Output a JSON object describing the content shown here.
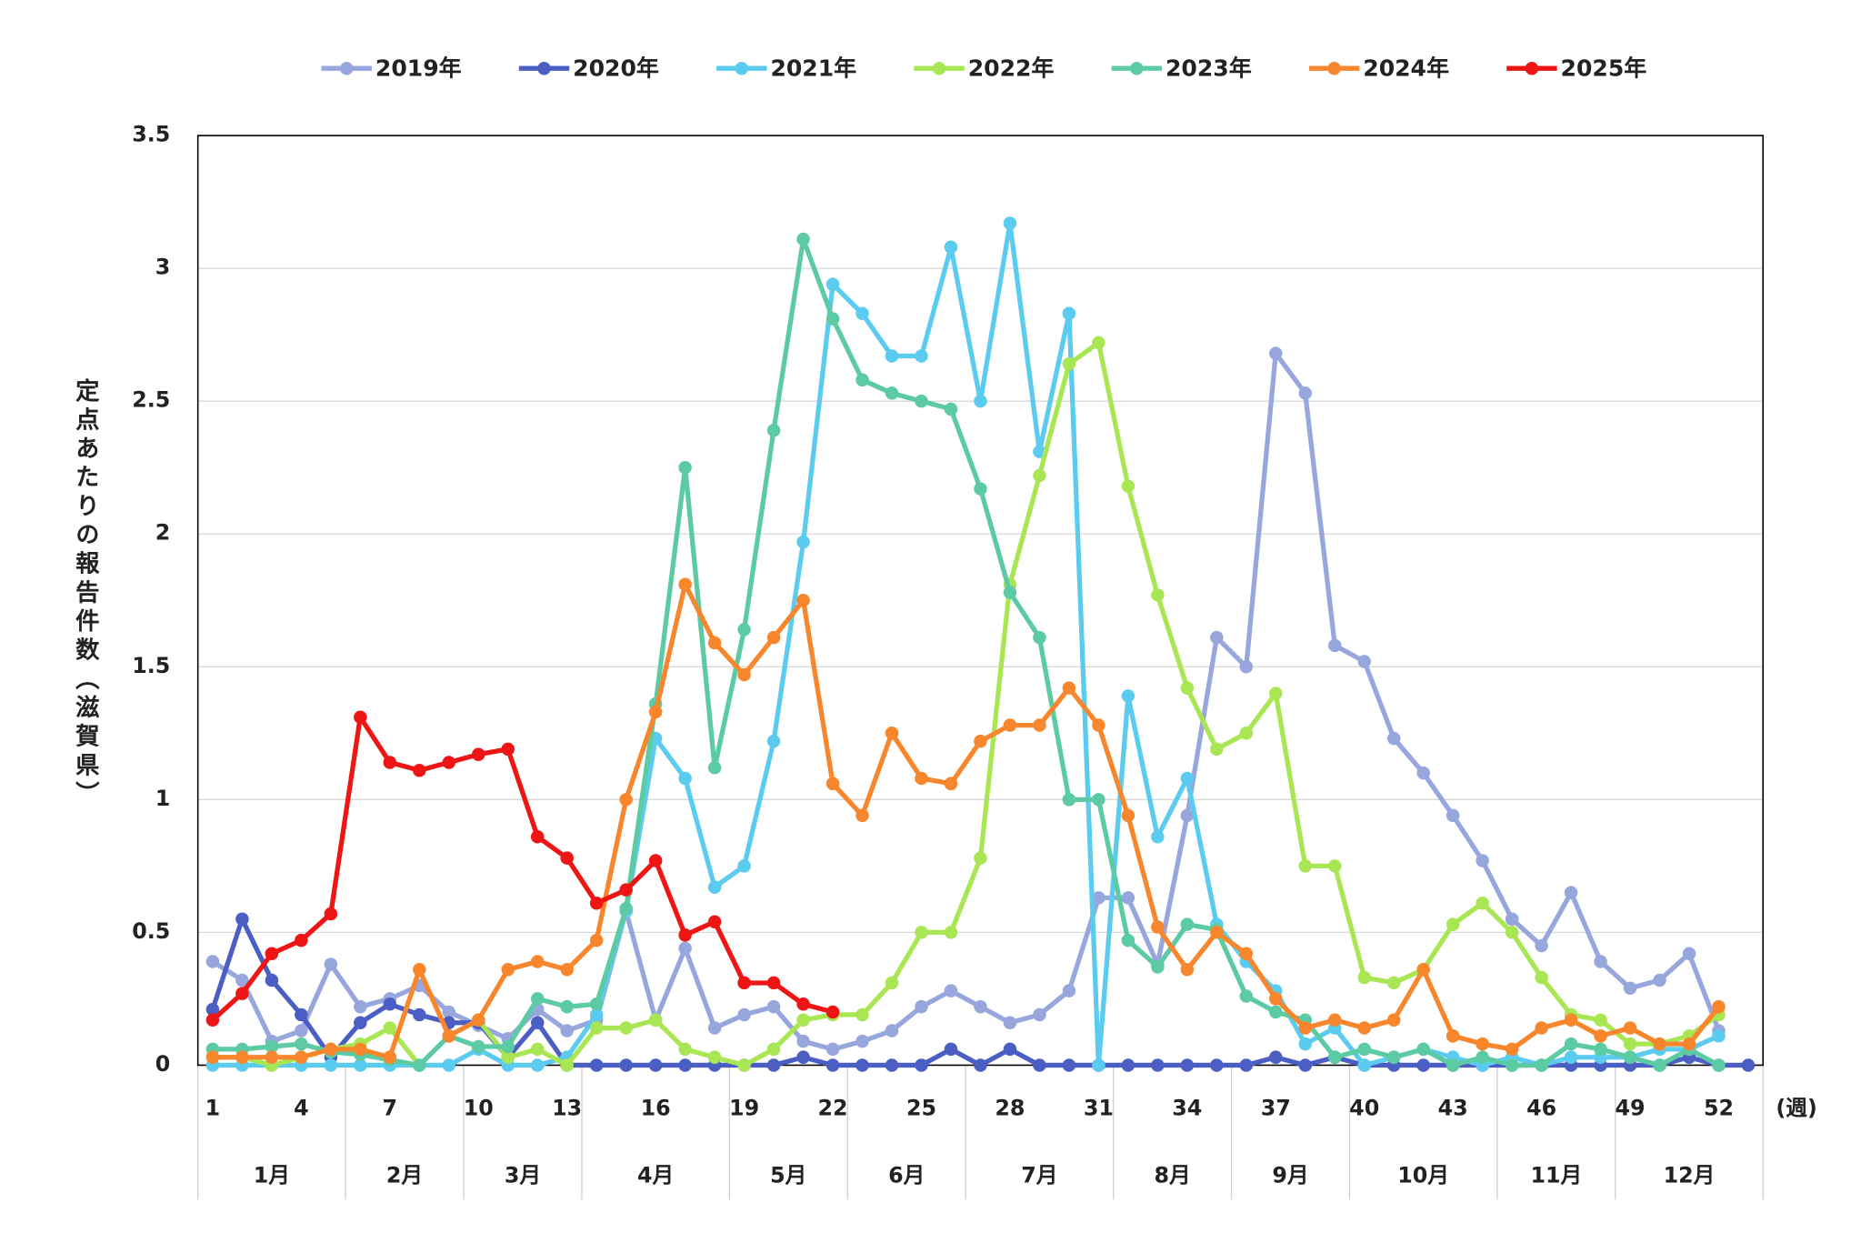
{
  "chart_data": {
    "type": "line",
    "ylabel": "定点あたりの報告件数（滋賀県）",
    "xlabel": "(週)",
    "x": [
      1,
      2,
      3,
      4,
      5,
      6,
      7,
      8,
      9,
      10,
      11,
      12,
      13,
      14,
      15,
      16,
      17,
      18,
      19,
      20,
      21,
      22,
      23,
      24,
      25,
      26,
      27,
      28,
      29,
      30,
      31,
      32,
      33,
      34,
      35,
      36,
      37,
      38,
      39,
      40,
      41,
      42,
      43,
      44,
      45,
      46,
      47,
      48,
      49,
      50,
      51,
      52,
      53
    ],
    "xlim": [
      0.5,
      53.5
    ],
    "xticks": [
      1,
      4,
      7,
      10,
      13,
      16,
      19,
      22,
      25,
      28,
      31,
      34,
      37,
      40,
      43,
      46,
      49,
      52
    ],
    "ylim": [
      0,
      3.5
    ],
    "yticks": [
      0,
      0.5,
      1,
      1.5,
      2,
      2.5,
      3,
      3.5
    ],
    "grid": true,
    "legend": "top",
    "months": [
      "1月",
      "2月",
      "3月",
      "4月",
      "5月",
      "6月",
      "7月",
      "8月",
      "9月",
      "10月",
      "11月",
      "12月"
    ],
    "month_edges": [
      0.5,
      5.5,
      9.5,
      13.5,
      18.5,
      22.5,
      26.5,
      31.5,
      35.5,
      39.5,
      44.5,
      48.5,
      53.5
    ],
    "series": [
      {
        "name": "2019年",
        "color": "#97a6dd",
        "values": [
          0.39,
          0.32,
          0.09,
          0.13,
          0.38,
          0.22,
          0.25,
          0.3,
          0.2,
          0.15,
          0.1,
          0.21,
          0.13,
          0.17,
          0.58,
          0.17,
          0.44,
          0.14,
          0.19,
          0.22,
          0.09,
          0.06,
          0.09,
          0.13,
          0.22,
          0.28,
          0.22,
          0.16,
          0.19,
          0.28,
          0.63,
          0.63,
          0.38,
          0.94,
          1.61,
          1.5,
          2.68,
          2.53,
          1.58,
          1.52,
          1.23,
          1.1,
          0.94,
          0.77,
          0.55,
          0.45,
          0.65,
          0.39,
          0.29,
          0.32,
          0.42,
          0.13,
          null
        ]
      },
      {
        "name": "2020年",
        "color": "#4a5ec4",
        "values": [
          0.21,
          0.55,
          0.32,
          0.19,
          0.03,
          0.16,
          0.23,
          0.19,
          0.16,
          0.16,
          0.03,
          0.16,
          0,
          0,
          0,
          0,
          0,
          0,
          0,
          0,
          0.03,
          0,
          0,
          0,
          0,
          0.06,
          0,
          0.06,
          0,
          0,
          0,
          0,
          0,
          0,
          0,
          0,
          0.03,
          0,
          0.03,
          0,
          0,
          0,
          0,
          0,
          0,
          0,
          0,
          0,
          0,
          0,
          0.03,
          0,
          0
        ]
      },
      {
        "name": "2021年",
        "color": "#5ccbf0",
        "values": [
          0,
          0,
          0,
          0,
          0,
          0,
          0,
          0,
          0,
          0.06,
          0,
          0,
          0.03,
          0.19,
          0.58,
          1.23,
          1.08,
          0.67,
          0.75,
          1.22,
          1.97,
          2.94,
          2.83,
          2.67,
          2.67,
          3.08,
          2.5,
          3.17,
          2.31,
          2.83,
          0,
          1.39,
          0.86,
          1.08,
          0.53,
          0.39,
          0.28,
          0.08,
          0.14,
          0,
          0.03,
          0.06,
          0.03,
          0,
          0.03,
          0,
          0.03,
          0.03,
          0.03,
          0.06,
          0.06,
          0.11,
          null
        ]
      },
      {
        "name": "2022年",
        "color": "#a9e653",
        "values": [
          0.03,
          0.03,
          0,
          0.03,
          0.06,
          0.08,
          0.14,
          0,
          0.11,
          0.17,
          0.03,
          0.06,
          0,
          0.14,
          0.14,
          0.17,
          0.06,
          0.03,
          0,
          0.06,
          0.17,
          0.19,
          0.19,
          0.31,
          0.5,
          0.5,
          0.78,
          1.81,
          2.22,
          2.64,
          2.72,
          2.18,
          1.77,
          1.42,
          1.19,
          1.25,
          1.4,
          0.75,
          0.75,
          0.33,
          0.31,
          0.36,
          0.53,
          0.61,
          0.5,
          0.33,
          0.19,
          0.17,
          0.08,
          0.08,
          0.11,
          0.19,
          null
        ]
      },
      {
        "name": "2023年",
        "color": "#5ccba3",
        "values": [
          0.06,
          0.06,
          0.07,
          0.08,
          0.05,
          0.04,
          0.02,
          0,
          0.11,
          0.07,
          0.07,
          0.25,
          0.22,
          0.23,
          0.59,
          1.36,
          2.25,
          1.12,
          1.64,
          2.39,
          3.11,
          2.81,
          2.58,
          2.53,
          2.5,
          2.47,
          2.17,
          1.78,
          1.61,
          1.0,
          1.0,
          0.47,
          0.37,
          0.53,
          0.51,
          0.26,
          0.2,
          0.17,
          0.03,
          0.06,
          0.03,
          0.06,
          0,
          0.03,
          0,
          0,
          0.08,
          0.06,
          0.03,
          0,
          0.06,
          0,
          null
        ]
      },
      {
        "name": "2024年",
        "color": "#f7862c",
        "values": [
          0.03,
          0.03,
          0.03,
          0.03,
          0.06,
          0.06,
          0.03,
          0.36,
          0.11,
          0.17,
          0.36,
          0.39,
          0.36,
          0.47,
          1.0,
          1.33,
          1.81,
          1.59,
          1.47,
          1.61,
          1.75,
          1.06,
          0.94,
          1.25,
          1.08,
          1.06,
          1.22,
          1.28,
          1.28,
          1.42,
          1.28,
          0.94,
          0.52,
          0.36,
          0.5,
          0.42,
          0.25,
          0.14,
          0.17,
          0.14,
          0.17,
          0.36,
          0.11,
          0.08,
          0.06,
          0.14,
          0.17,
          0.11,
          0.14,
          0.08,
          0.08,
          0.22,
          null
        ]
      },
      {
        "name": "2025年",
        "color": "#ee1515",
        "values": [
          0.17,
          0.27,
          0.42,
          0.47,
          0.57,
          1.31,
          1.14,
          1.11,
          1.14,
          1.17,
          1.19,
          0.86,
          0.78,
          0.61,
          0.66,
          0.77,
          0.49,
          0.54,
          0.31,
          0.31,
          0.23,
          0.2,
          null,
          null,
          null,
          null,
          null,
          null,
          null,
          null,
          null,
          null,
          null,
          null,
          null,
          null,
          null,
          null,
          null,
          null,
          null,
          null,
          null,
          null,
          null,
          null,
          null,
          null,
          null,
          null,
          null,
          null,
          null
        ]
      }
    ]
  }
}
